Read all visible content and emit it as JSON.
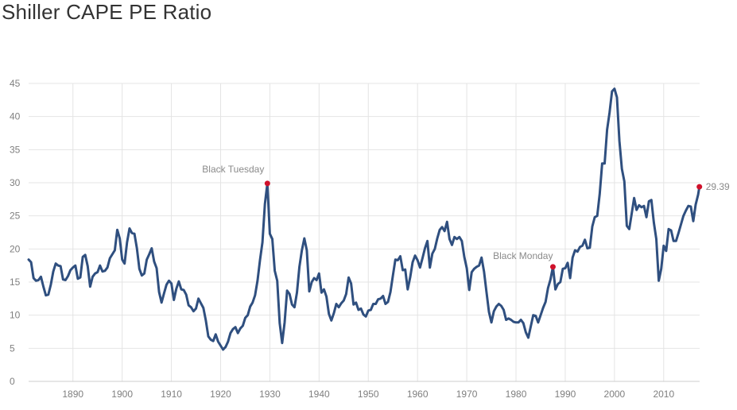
{
  "page": {
    "title": "Shiller CAPE PE Ratio"
  },
  "colors": {
    "line": "#2f4f7f",
    "marker": "#d0112b",
    "grid": "#e4e4e4",
    "text": "#7f7f7f"
  },
  "chart_data": {
    "type": "line",
    "title": "Shiller CAPE PE Ratio",
    "xlabel": "",
    "ylabel": "",
    "xlim": [
      1881,
      2017.3
    ],
    "ylim": [
      0,
      45
    ],
    "x_ticks": [
      1890,
      1900,
      1910,
      1920,
      1930,
      1940,
      1950,
      1960,
      1970,
      1980,
      1990,
      2000,
      2010
    ],
    "y_ticks": [
      0,
      5,
      10,
      15,
      20,
      25,
      30,
      35,
      40,
      45
    ],
    "grid": true,
    "legend": "none",
    "series": [
      {
        "points": [
          [
            1881.0,
            18.4
          ],
          [
            1881.5,
            18.0
          ],
          [
            1882.0,
            15.6
          ],
          [
            1882.5,
            15.2
          ],
          [
            1883.0,
            15.3
          ],
          [
            1883.5,
            15.8
          ],
          [
            1884.0,
            14.3
          ],
          [
            1884.5,
            13.0
          ],
          [
            1885.0,
            13.1
          ],
          [
            1885.5,
            14.6
          ],
          [
            1886.0,
            16.6
          ],
          [
            1886.5,
            17.8
          ],
          [
            1887.0,
            17.5
          ],
          [
            1887.5,
            17.4
          ],
          [
            1888.0,
            15.4
          ],
          [
            1888.5,
            15.3
          ],
          [
            1889.0,
            15.9
          ],
          [
            1889.5,
            16.8
          ],
          [
            1890.0,
            17.2
          ],
          [
            1890.5,
            17.5
          ],
          [
            1891.0,
            15.5
          ],
          [
            1891.5,
            15.7
          ],
          [
            1892.0,
            18.8
          ],
          [
            1892.5,
            19.1
          ],
          [
            1893.0,
            17.4
          ],
          [
            1893.5,
            14.3
          ],
          [
            1894.0,
            15.8
          ],
          [
            1894.5,
            16.3
          ],
          [
            1895.0,
            16.5
          ],
          [
            1895.5,
            17.5
          ],
          [
            1896.0,
            16.6
          ],
          [
            1896.5,
            16.7
          ],
          [
            1897.0,
            17.2
          ],
          [
            1897.5,
            18.6
          ],
          [
            1898.0,
            19.2
          ],
          [
            1898.5,
            19.8
          ],
          [
            1899.0,
            22.9
          ],
          [
            1899.5,
            21.6
          ],
          [
            1900.0,
            18.4
          ],
          [
            1900.5,
            17.8
          ],
          [
            1901.0,
            21.0
          ],
          [
            1901.5,
            23.1
          ],
          [
            1902.0,
            22.4
          ],
          [
            1902.5,
            22.3
          ],
          [
            1903.0,
            20.1
          ],
          [
            1903.5,
            17.0
          ],
          [
            1904.0,
            16.0
          ],
          [
            1904.5,
            16.3
          ],
          [
            1905.0,
            18.4
          ],
          [
            1905.5,
            19.2
          ],
          [
            1906.0,
            20.1
          ],
          [
            1906.5,
            18.1
          ],
          [
            1907.0,
            17.1
          ],
          [
            1907.5,
            13.5
          ],
          [
            1908.0,
            11.9
          ],
          [
            1908.5,
            13.3
          ],
          [
            1909.0,
            14.6
          ],
          [
            1909.5,
            15.2
          ],
          [
            1910.0,
            14.8
          ],
          [
            1910.5,
            12.3
          ],
          [
            1911.0,
            14.0
          ],
          [
            1911.5,
            15.1
          ],
          [
            1912.0,
            13.9
          ],
          [
            1912.5,
            13.8
          ],
          [
            1913.0,
            13.1
          ],
          [
            1913.5,
            11.5
          ],
          [
            1914.0,
            11.2
          ],
          [
            1914.5,
            10.6
          ],
          [
            1915.0,
            11.0
          ],
          [
            1915.5,
            12.5
          ],
          [
            1916.0,
            11.8
          ],
          [
            1916.5,
            11.1
          ],
          [
            1917.0,
            9.2
          ],
          [
            1917.5,
            6.8
          ],
          [
            1918.0,
            6.3
          ],
          [
            1918.5,
            6.1
          ],
          [
            1919.0,
            7.1
          ],
          [
            1919.5,
            6.0
          ],
          [
            1920.0,
            5.4
          ],
          [
            1920.5,
            4.8
          ],
          [
            1921.0,
            5.2
          ],
          [
            1921.5,
            6.0
          ],
          [
            1922.0,
            7.3
          ],
          [
            1922.5,
            7.9
          ],
          [
            1923.0,
            8.2
          ],
          [
            1923.5,
            7.3
          ],
          [
            1924.0,
            8.0
          ],
          [
            1924.5,
            8.4
          ],
          [
            1925.0,
            9.6
          ],
          [
            1925.5,
            10.0
          ],
          [
            1926.0,
            11.3
          ],
          [
            1926.5,
            11.9
          ],
          [
            1927.0,
            13.0
          ],
          [
            1927.5,
            15.2
          ],
          [
            1928.0,
            18.3
          ],
          [
            1928.5,
            21.0
          ],
          [
            1929.0,
            26.8
          ],
          [
            1929.5,
            29.9
          ],
          [
            1930.0,
            22.3
          ],
          [
            1930.5,
            21.5
          ],
          [
            1931.0,
            16.7
          ],
          [
            1931.5,
            15.2
          ],
          [
            1932.0,
            8.8
          ],
          [
            1932.5,
            5.8
          ],
          [
            1933.0,
            8.9
          ],
          [
            1933.5,
            13.7
          ],
          [
            1934.0,
            13.2
          ],
          [
            1934.5,
            11.6
          ],
          [
            1935.0,
            11.2
          ],
          [
            1935.5,
            13.4
          ],
          [
            1936.0,
            17.3
          ],
          [
            1936.5,
            19.8
          ],
          [
            1937.0,
            21.6
          ],
          [
            1937.5,
            19.8
          ],
          [
            1938.0,
            13.6
          ],
          [
            1938.5,
            15.0
          ],
          [
            1939.0,
            15.6
          ],
          [
            1939.5,
            15.3
          ],
          [
            1940.0,
            16.3
          ],
          [
            1940.5,
            13.4
          ],
          [
            1941.0,
            13.9
          ],
          [
            1941.5,
            12.8
          ],
          [
            1942.0,
            10.2
          ],
          [
            1942.5,
            9.2
          ],
          [
            1943.0,
            10.3
          ],
          [
            1943.5,
            11.7
          ],
          [
            1944.0,
            11.2
          ],
          [
            1944.5,
            11.8
          ],
          [
            1945.0,
            12.2
          ],
          [
            1945.5,
            13.2
          ],
          [
            1946.0,
            15.7
          ],
          [
            1946.5,
            14.8
          ],
          [
            1947.0,
            11.6
          ],
          [
            1947.5,
            11.9
          ],
          [
            1948.0,
            10.8
          ],
          [
            1948.5,
            11.0
          ],
          [
            1949.0,
            10.1
          ],
          [
            1949.5,
            9.8
          ],
          [
            1950.0,
            10.7
          ],
          [
            1950.5,
            10.8
          ],
          [
            1951.0,
            11.7
          ],
          [
            1951.5,
            11.7
          ],
          [
            1952.0,
            12.4
          ],
          [
            1952.5,
            12.5
          ],
          [
            1953.0,
            12.9
          ],
          [
            1953.5,
            11.7
          ],
          [
            1954.0,
            12.0
          ],
          [
            1954.5,
            13.5
          ],
          [
            1955.0,
            16.0
          ],
          [
            1955.5,
            18.4
          ],
          [
            1956.0,
            18.3
          ],
          [
            1956.5,
            18.9
          ],
          [
            1957.0,
            16.8
          ],
          [
            1957.5,
            16.9
          ],
          [
            1958.0,
            13.9
          ],
          [
            1958.5,
            15.7
          ],
          [
            1959.0,
            18.0
          ],
          [
            1959.5,
            19.0
          ],
          [
            1960.0,
            18.3
          ],
          [
            1960.5,
            17.2
          ],
          [
            1961.0,
            18.6
          ],
          [
            1961.5,
            20.1
          ],
          [
            1962.0,
            21.2
          ],
          [
            1962.5,
            17.2
          ],
          [
            1963.0,
            19.3
          ],
          [
            1963.5,
            20.0
          ],
          [
            1964.0,
            21.6
          ],
          [
            1964.5,
            22.9
          ],
          [
            1965.0,
            23.3
          ],
          [
            1965.5,
            22.7
          ],
          [
            1966.0,
            24.1
          ],
          [
            1966.5,
            21.5
          ],
          [
            1967.0,
            20.6
          ],
          [
            1967.5,
            21.8
          ],
          [
            1968.0,
            21.5
          ],
          [
            1968.5,
            21.8
          ],
          [
            1969.0,
            21.2
          ],
          [
            1969.5,
            18.8
          ],
          [
            1970.0,
            17.1
          ],
          [
            1970.5,
            13.8
          ],
          [
            1971.0,
            16.5
          ],
          [
            1971.5,
            17.0
          ],
          [
            1972.0,
            17.3
          ],
          [
            1972.5,
            17.5
          ],
          [
            1973.0,
            18.7
          ],
          [
            1973.5,
            16.6
          ],
          [
            1974.0,
            13.5
          ],
          [
            1974.5,
            10.5
          ],
          [
            1975.0,
            8.9
          ],
          [
            1975.5,
            10.6
          ],
          [
            1976.0,
            11.3
          ],
          [
            1976.5,
            11.7
          ],
          [
            1977.0,
            11.4
          ],
          [
            1977.5,
            10.8
          ],
          [
            1978.0,
            9.3
          ],
          [
            1978.5,
            9.5
          ],
          [
            1979.0,
            9.3
          ],
          [
            1979.5,
            9.0
          ],
          [
            1980.0,
            8.9
          ],
          [
            1980.5,
            8.9
          ],
          [
            1981.0,
            9.3
          ],
          [
            1981.5,
            8.8
          ],
          [
            1982.0,
            7.4
          ],
          [
            1982.5,
            6.6
          ],
          [
            1983.0,
            8.3
          ],
          [
            1983.5,
            10.0
          ],
          [
            1984.0,
            9.9
          ],
          [
            1984.5,
            8.9
          ],
          [
            1985.0,
            10.0
          ],
          [
            1985.5,
            11.1
          ],
          [
            1986.0,
            12.0
          ],
          [
            1986.5,
            14.1
          ],
          [
            1987.0,
            15.4
          ],
          [
            1987.5,
            17.3
          ],
          [
            1988.0,
            13.9
          ],
          [
            1988.5,
            14.7
          ],
          [
            1989.0,
            15.0
          ],
          [
            1989.5,
            17.0
          ],
          [
            1990.0,
            17.1
          ],
          [
            1990.5,
            17.9
          ],
          [
            1991.0,
            15.6
          ],
          [
            1991.5,
            18.7
          ],
          [
            1992.0,
            19.8
          ],
          [
            1992.5,
            19.6
          ],
          [
            1993.0,
            20.3
          ],
          [
            1993.5,
            20.5
          ],
          [
            1994.0,
            21.4
          ],
          [
            1994.5,
            20.1
          ],
          [
            1995.0,
            20.2
          ],
          [
            1995.5,
            23.4
          ],
          [
            1996.0,
            24.8
          ],
          [
            1996.5,
            25.0
          ],
          [
            1997.0,
            28.3
          ],
          [
            1997.5,
            32.9
          ],
          [
            1998.0,
            32.9
          ],
          [
            1998.5,
            38.0
          ],
          [
            1999.0,
            40.6
          ],
          [
            1999.5,
            43.8
          ],
          [
            2000.0,
            44.2
          ],
          [
            2000.5,
            42.9
          ],
          [
            2001.0,
            36.3
          ],
          [
            2001.5,
            32.1
          ],
          [
            2002.0,
            30.2
          ],
          [
            2002.5,
            23.5
          ],
          [
            2003.0,
            23.0
          ],
          [
            2003.5,
            25.3
          ],
          [
            2004.0,
            27.7
          ],
          [
            2004.5,
            25.9
          ],
          [
            2005.0,
            26.6
          ],
          [
            2005.5,
            26.3
          ],
          [
            2006.0,
            26.5
          ],
          [
            2006.5,
            24.8
          ],
          [
            2007.0,
            27.2
          ],
          [
            2007.5,
            27.4
          ],
          [
            2008.0,
            24.0
          ],
          [
            2008.5,
            21.5
          ],
          [
            2009.0,
            15.2
          ],
          [
            2009.5,
            17.0
          ],
          [
            2010.0,
            20.5
          ],
          [
            2010.5,
            19.7
          ],
          [
            2011.0,
            23.0
          ],
          [
            2011.5,
            22.8
          ],
          [
            2012.0,
            21.2
          ],
          [
            2012.5,
            21.2
          ],
          [
            2013.0,
            22.4
          ],
          [
            2013.5,
            23.7
          ],
          [
            2014.0,
            25.0
          ],
          [
            2014.5,
            25.8
          ],
          [
            2015.0,
            26.5
          ],
          [
            2015.5,
            26.4
          ],
          [
            2016.0,
            24.2
          ],
          [
            2016.5,
            26.7
          ],
          [
            2017.0,
            28.2
          ],
          [
            2017.25,
            29.39
          ]
        ]
      }
    ],
    "annotations": [
      {
        "label": "Black Tuesday",
        "x": 1929.5,
        "y": 29.9,
        "anchor": "middle",
        "position": "above"
      },
      {
        "label": "Black Monday",
        "x": 1987.5,
        "y": 17.3,
        "anchor": "end",
        "position": "above"
      },
      {
        "label": "29.39",
        "x": 2017.25,
        "y": 29.39,
        "anchor": "start",
        "position": "right"
      }
    ]
  }
}
